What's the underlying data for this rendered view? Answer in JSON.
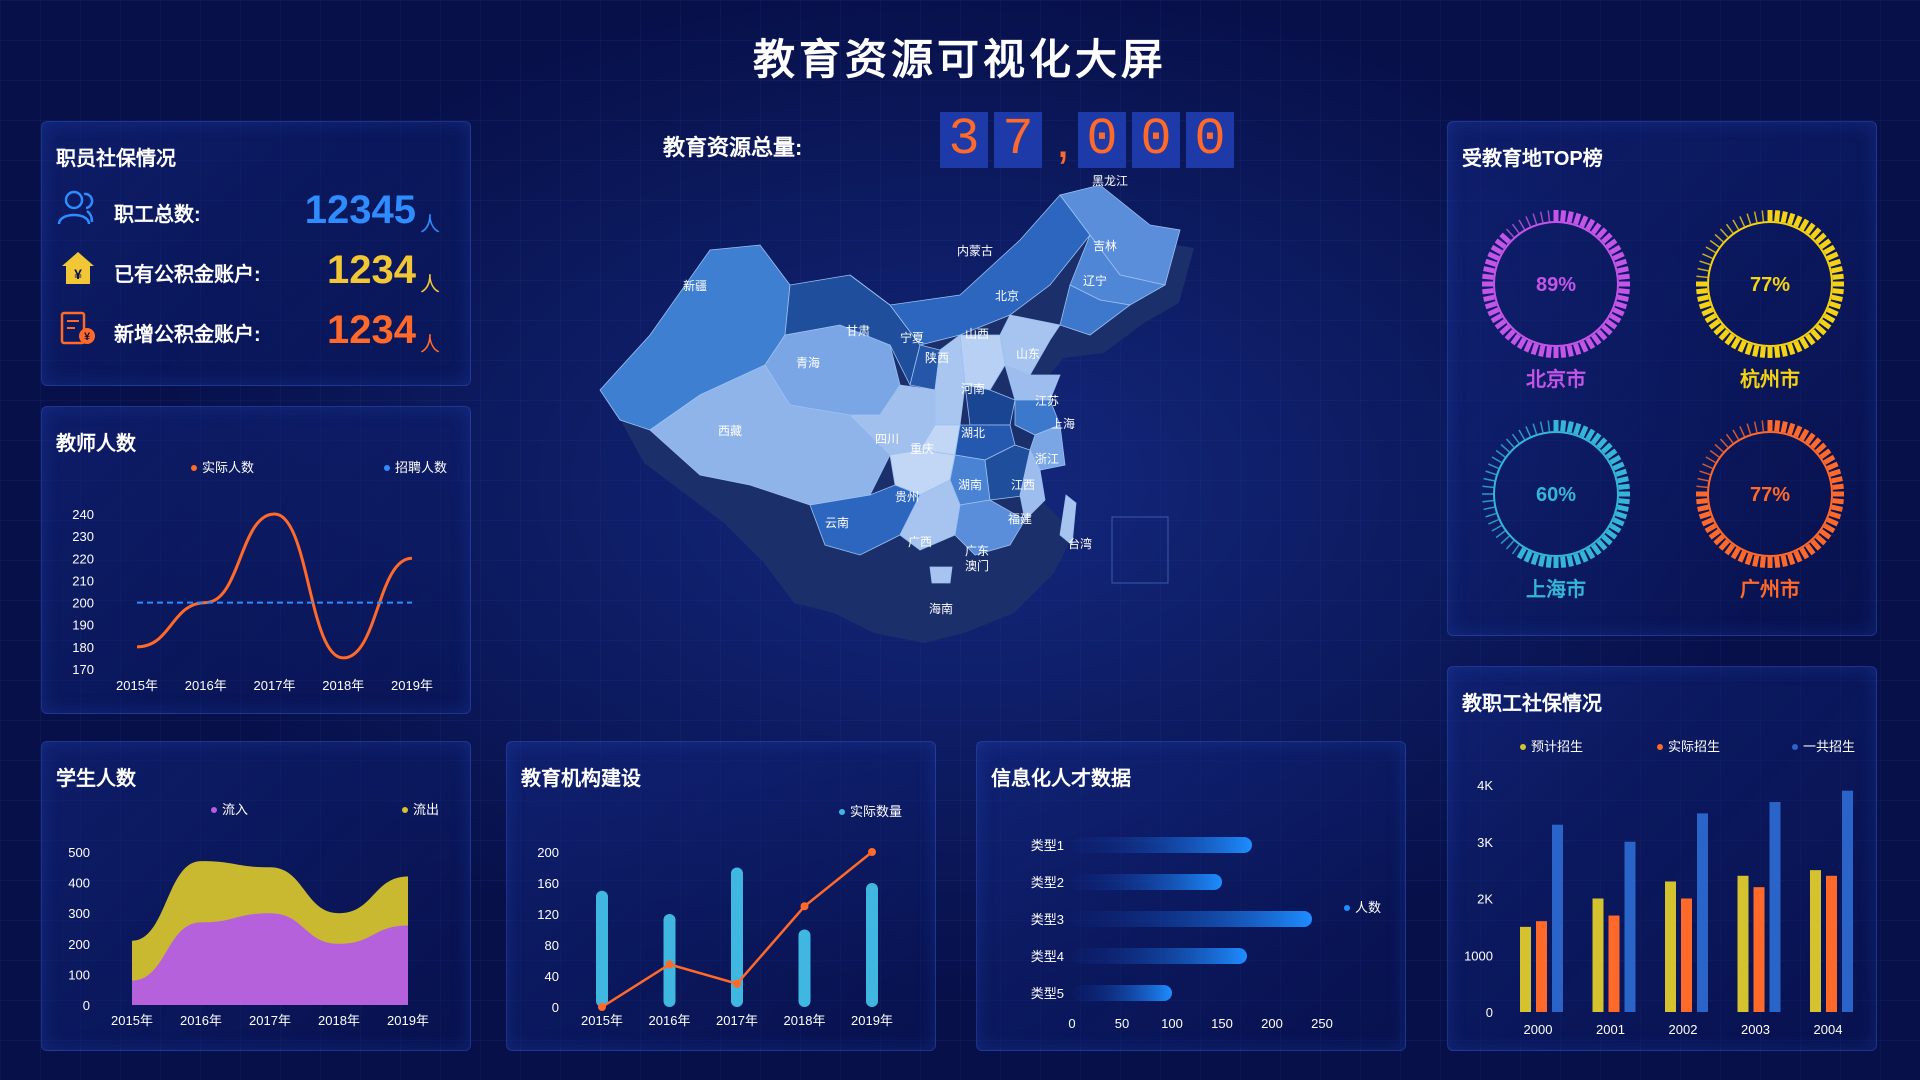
{
  "page_title": "教育资源可视化大屏",
  "total": {
    "label": "教育资源总量:",
    "digits": [
      "3",
      "7",
      ",",
      "0",
      "0",
      "0"
    ]
  },
  "staff_panel": {
    "title": "职员社保情况",
    "rows": [
      {
        "icon": "users-icon",
        "label": "职工总数:",
        "value": "12345",
        "unit": "人",
        "color": "#2f8cff"
      },
      {
        "icon": "house-yuan-icon",
        "label": "已有公积金账户:",
        "value": "1234",
        "unit": "人",
        "color": "#f2c736"
      },
      {
        "icon": "account-book-icon",
        "label": "新增公积金账户:",
        "value": "1234",
        "unit": "人",
        "color": "#ff6a2b"
      }
    ]
  },
  "teacher_panel": {
    "title": "教师人数",
    "chart_data": {
      "type": "line",
      "categories": [
        "2015年",
        "2016年",
        "2017年",
        "2018年",
        "2019年"
      ],
      "series": [
        {
          "name": "实际人数",
          "values": [
            180,
            200,
            240,
            175,
            220
          ],
          "color": "#ff6a2b"
        },
        {
          "name": "招聘人数",
          "values": [
            200,
            200,
            200,
            200,
            200
          ],
          "color": "#2f8cff",
          "dashed": true
        }
      ],
      "yticks": [
        170,
        180,
        190,
        200,
        210,
        220,
        230,
        240
      ],
      "ylim": [
        170,
        240
      ]
    }
  },
  "student_panel": {
    "title": "学生人数",
    "chart_data": {
      "type": "area",
      "categories": [
        "2015年",
        "2016年",
        "2017年",
        "2018年",
        "2019年"
      ],
      "series": [
        {
          "name": "流入",
          "values": [
            80,
            270,
            300,
            200,
            260
          ],
          "color": "#b55ce6"
        },
        {
          "name": "流出",
          "values": [
            210,
            470,
            450,
            300,
            420
          ],
          "color": "#d4c22e"
        }
      ],
      "yticks": [
        0,
        100,
        200,
        300,
        400,
        500
      ],
      "ylim": [
        0,
        500
      ]
    }
  },
  "institution_panel": {
    "title": "教育机构建设",
    "chart_data": {
      "type": "bar",
      "categories": [
        "2015年",
        "2016年",
        "2017年",
        "2018年",
        "2019年"
      ],
      "series": [
        {
          "name": "实际数量",
          "values": [
            150,
            120,
            180,
            100,
            160
          ],
          "color": "#3fb7e0"
        }
      ],
      "line_values": [
        0,
        55,
        30,
        130,
        200
      ],
      "yticks": [
        0,
        40,
        80,
        120,
        160,
        200
      ],
      "ylim": [
        0,
        200
      ]
    }
  },
  "talent_panel": {
    "title": "信息化人才数据",
    "chart_data": {
      "type": "bar",
      "orientation": "horizontal",
      "categories": [
        "类型1",
        "类型2",
        "类型3",
        "类型4",
        "类型5"
      ],
      "series": [
        {
          "name": "人数",
          "values": [
            180,
            150,
            240,
            175,
            100
          ]
        }
      ],
      "xticks": [
        0,
        50,
        100,
        150,
        200,
        250
      ],
      "xlim": [
        0,
        250
      ]
    }
  },
  "top_panel": {
    "title": "受教育地TOP榜",
    "rings": [
      {
        "city": "北京市",
        "percent": 89,
        "label": "89%",
        "color": "#c455e8"
      },
      {
        "city": "杭州市",
        "percent": 77,
        "label": "77%",
        "color": "#f5d312"
      },
      {
        "city": "上海市",
        "percent": 60,
        "label": "60%",
        "color": "#35b6d8"
      },
      {
        "city": "广州市",
        "percent": 77,
        "label": "77%",
        "color": "#ff6a2b"
      }
    ]
  },
  "social_panel": {
    "title": "教职工社保情况",
    "chart_data": {
      "type": "bar",
      "categories": [
        "2000",
        "2001",
        "2002",
        "2003",
        "2004"
      ],
      "series": [
        {
          "name": "预计招生",
          "values": [
            1500,
            2000,
            2300,
            2400,
            2500
          ],
          "color": "#d4c22e"
        },
        {
          "name": "实际招生",
          "values": [
            1600,
            1700,
            2000,
            2200,
            2400
          ],
          "color": "#ff6a2b"
        },
        {
          "name": "一共招生",
          "values": [
            3300,
            3000,
            3500,
            3700,
            3900
          ],
          "color": "#2a64c8"
        }
      ],
      "yticks": [
        "0",
        "1000",
        "2K",
        "3K",
        "4K"
      ],
      "ylim": [
        0,
        4000
      ]
    }
  },
  "map": {
    "provinces": [
      "新疆",
      "西藏",
      "青海",
      "甘肃",
      "内蒙古",
      "黑龙江",
      "吉林",
      "辽宁",
      "北京",
      "宁夏",
      "山西",
      "山东",
      "陕西",
      "河南",
      "江苏",
      "上海",
      "四川",
      "重庆",
      "湖北",
      "浙江",
      "湖南",
      "江西",
      "贵州",
      "云南",
      "福建",
      "广西",
      "广东",
      "澳门",
      "台湾",
      "海南"
    ]
  }
}
